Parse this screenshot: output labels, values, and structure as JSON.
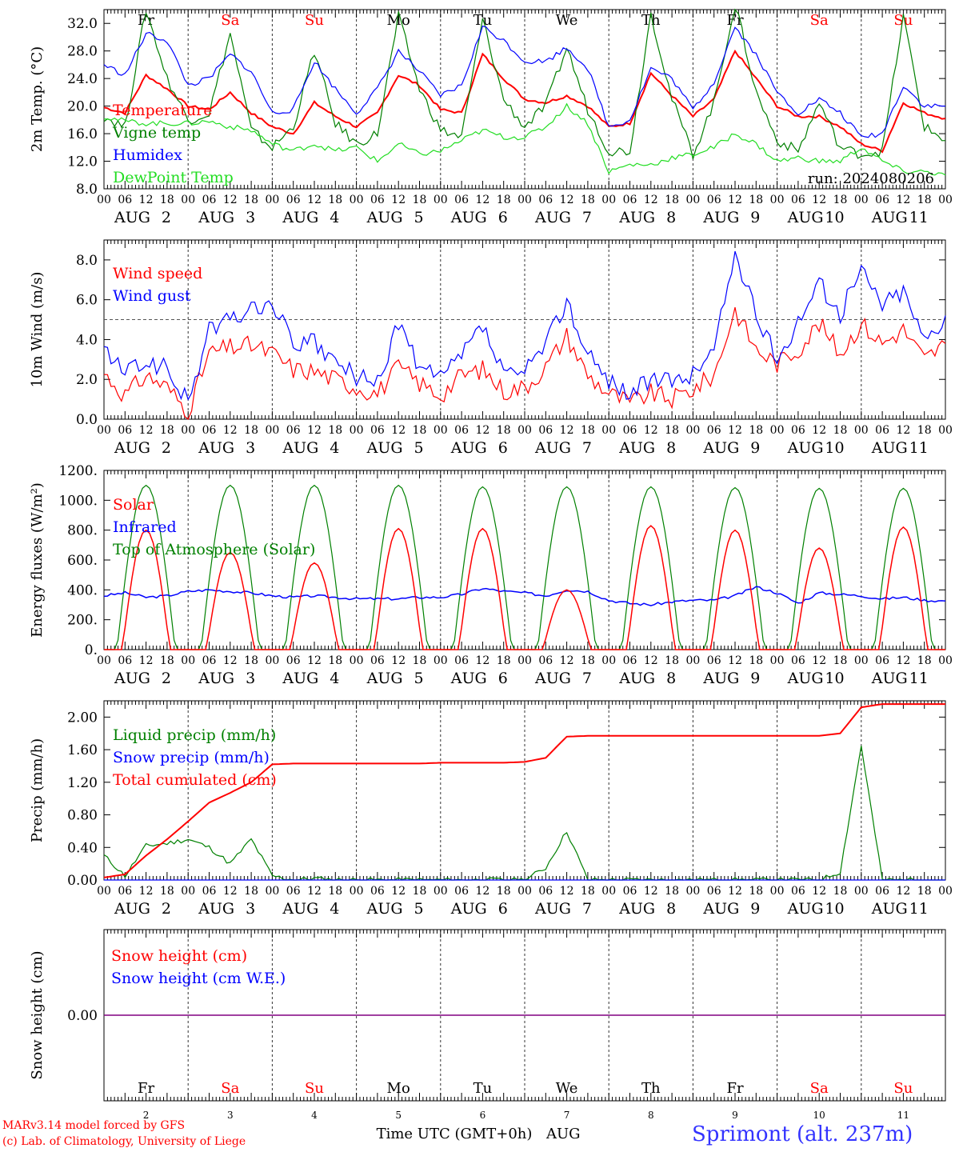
{
  "meteogram": {
    "day_names": [
      "Fr",
      "Sa",
      "Su",
      "Mo",
      "Tu",
      "We",
      "Th",
      "Fr",
      "Sa",
      "Su"
    ],
    "weekend_days": [
      1,
      2,
      8,
      9
    ],
    "day_numbers": [
      "2",
      "3",
      "4",
      "5",
      "6",
      "7",
      "8",
      "9",
      "10",
      "11"
    ],
    "month": "AUG",
    "hour_ticks": [
      "00",
      "06",
      "12",
      "18"
    ],
    "last_tick": "00",
    "run_label": "run: 2024080206",
    "colors": {
      "red": "#ff0000",
      "green": "#008000",
      "blue": "#0000ff",
      "lightgreen": "#22dd22",
      "purple": "#800080",
      "weekend": "#ff0000",
      "weekday": "#000000"
    }
  },
  "chart_data": [
    {
      "type": "line",
      "ylabel": "2m Temp. (°C)",
      "ylim": [
        8,
        34
      ],
      "yticks": [
        "8.0",
        "12.0",
        "16.0",
        "20.0",
        "24.0",
        "28.0",
        "32.0"
      ],
      "x": [
        "Aug 2 00",
        "Aug 2 06",
        "Aug 2 12",
        "Aug 2 18",
        "Aug 3 00",
        "Aug 3 06",
        "Aug 3 12",
        "Aug 3 18",
        "Aug 4 00",
        "Aug 4 06",
        "Aug 4 12",
        "Aug 4 18",
        "Aug 5 00",
        "Aug 5 06",
        "Aug 5 12",
        "Aug 5 18",
        "Aug 6 00",
        "Aug 6 06",
        "Aug 6 12",
        "Aug 6 18",
        "Aug 7 00",
        "Aug 7 06",
        "Aug 7 12",
        "Aug 7 18",
        "Aug 8 00",
        "Aug 8 06",
        "Aug 8 12",
        "Aug 8 18",
        "Aug 9 00",
        "Aug 9 06",
        "Aug 9 12",
        "Aug 9 18",
        "Aug 10 00",
        "Aug 10 06",
        "Aug 10 12",
        "Aug 10 18",
        "Aug 11 00",
        "Aug 11 06",
        "Aug 11 12",
        "Aug 11 18",
        "Aug 12 00"
      ],
      "series": [
        {
          "name": "Temperature",
          "color": "#ff0000",
          "values": [
            19.8,
            19.0,
            24.5,
            22.5,
            20.0,
            19.5,
            22.0,
            19.0,
            17.0,
            16.0,
            20.5,
            18.5,
            17.0,
            19.0,
            24.5,
            23.0,
            19.5,
            19.0,
            27.5,
            24.0,
            21.0,
            20.5,
            21.5,
            20.0,
            17.0,
            17.5,
            24.8,
            21.5,
            18.5,
            21.0,
            28.0,
            24.0,
            20.0,
            18.5,
            18.5,
            17.0,
            14.5,
            13.5,
            20.5,
            19.0,
            18.2
          ]
        },
        {
          "name": "Vigne temp",
          "color": "#008000",
          "values": [
            18.5,
            17.0,
            34.0,
            24.0,
            18.0,
            19.0,
            30.5,
            16.5,
            14.0,
            17.0,
            28.0,
            17.5,
            14.5,
            16.0,
            33.0,
            22.5,
            16.5,
            15.5,
            32.5,
            21.0,
            17.0,
            20.0,
            28.5,
            19.5,
            13.5,
            13.5,
            33.5,
            21.0,
            13.0,
            20.5,
            35.0,
            22.0,
            15.0,
            13.5,
            20.5,
            14.0,
            13.0,
            13.5,
            33.0,
            17.0,
            15.0
          ]
        },
        {
          "name": "Humidex",
          "color": "#0000ff",
          "values": [
            26.0,
            24.5,
            30.5,
            29.5,
            23.0,
            24.0,
            27.5,
            25.0,
            19.0,
            19.5,
            26.5,
            22.5,
            19.0,
            22.5,
            28.0,
            25.0,
            21.5,
            23.0,
            31.5,
            29.5,
            26.5,
            26.5,
            28.5,
            25.5,
            17.0,
            18.0,
            25.5,
            24.0,
            19.5,
            23.5,
            31.5,
            27.5,
            22.0,
            19.0,
            21.0,
            19.0,
            15.5,
            16.0,
            23.0,
            20.0,
            20.0
          ]
        },
        {
          "name": "DewPoint Temp",
          "color": "#22dd22",
          "values": [
            18.5,
            17.8,
            17.5,
            17.5,
            17.5,
            17.8,
            17.0,
            16.5,
            14.5,
            13.5,
            14.5,
            13.5,
            14.0,
            12.0,
            14.5,
            13.0,
            13.5,
            15.0,
            16.5,
            15.5,
            15.5,
            17.0,
            20.0,
            17.5,
            10.5,
            11.5,
            11.5,
            12.5,
            13.0,
            14.0,
            16.0,
            14.5,
            12.0,
            12.5,
            12.0,
            12.0,
            14.0,
            12.0,
            10.5,
            10.5,
            10.0
          ]
        }
      ]
    },
    {
      "type": "line",
      "ylabel": "10m Wind (m/s)",
      "ylim": [
        0,
        9
      ],
      "yticks": [
        "0.0",
        "2.0",
        "4.0",
        "6.0",
        "8.0"
      ],
      "x": [
        "Aug 2 00",
        "Aug 2 06",
        "Aug 2 12",
        "Aug 2 18",
        "Aug 3 00",
        "Aug 3 06",
        "Aug 3 12",
        "Aug 3 18",
        "Aug 4 00",
        "Aug 4 06",
        "Aug 4 12",
        "Aug 4 18",
        "Aug 5 00",
        "Aug 5 06",
        "Aug 5 12",
        "Aug 5 18",
        "Aug 6 00",
        "Aug 6 06",
        "Aug 6 12",
        "Aug 6 18",
        "Aug 7 00",
        "Aug 7 06",
        "Aug 7 12",
        "Aug 7 18",
        "Aug 8 00",
        "Aug 8 06",
        "Aug 8 12",
        "Aug 8 18",
        "Aug 9 00",
        "Aug 9 06",
        "Aug 9 12",
        "Aug 9 18",
        "Aug 10 00",
        "Aug 10 06",
        "Aug 10 12",
        "Aug 10 18",
        "Aug 11 00",
        "Aug 11 06",
        "Aug 11 12",
        "Aug 11 18",
        "Aug 12 00"
      ],
      "reference_line": 5.0,
      "series": [
        {
          "name": "Wind speed",
          "color": "#ff0000",
          "values": [
            2.3,
            1.2,
            2.2,
            1.6,
            0.4,
            3.3,
            3.6,
            3.7,
            3.3,
            2.5,
            2.4,
            2.0,
            1.6,
            1.3,
            2.6,
            1.8,
            1.2,
            2.2,
            2.5,
            1.4,
            1.6,
            2.6,
            4.2,
            2.2,
            1.3,
            0.8,
            1.3,
            1.0,
            1.5,
            2.2,
            5.5,
            3.5,
            2.8,
            3.5,
            4.8,
            3.3,
            4.8,
            3.8,
            4.5,
            3.0,
            3.8
          ]
        },
        {
          "name": "Wind gust",
          "color": "#0000ff",
          "values": [
            3.5,
            2.3,
            2.9,
            2.5,
            0.8,
            4.5,
            5.0,
            5.5,
            5.8,
            3.8,
            3.8,
            2.8,
            2.2,
            1.7,
            4.9,
            2.5,
            2.0,
            3.2,
            4.7,
            2.2,
            2.3,
            3.8,
            6.0,
            3.2,
            2.0,
            1.3,
            2.0,
            1.8,
            2.3,
            3.5,
            8.4,
            5.2,
            3.0,
            5.0,
            6.8,
            5.3,
            7.5,
            5.8,
            6.5,
            4.0,
            5.2
          ]
        }
      ]
    },
    {
      "type": "line",
      "ylabel": "Energy fluxes (W/m²)",
      "ylim": [
        0,
        1200
      ],
      "yticks": [
        "0.",
        "200.",
        "400.",
        "600.",
        "800.",
        "1000.",
        "1200."
      ],
      "series": [
        {
          "name": "Solar",
          "color": "#ff0000",
          "peaks": [
            800,
            650,
            580,
            810,
            810,
            400,
            830,
            800,
            680,
            820
          ]
        },
        {
          "name": "Infrared",
          "color": "#0000ff",
          "values": [
            360,
            380,
            350,
            360,
            390,
            400,
            390,
            380,
            360,
            350,
            360,
            350,
            340,
            340,
            340,
            350,
            350,
            370,
            410,
            390,
            380,
            360,
            400,
            390,
            330,
            310,
            300,
            320,
            330,
            330,
            360,
            420,
            380,
            310,
            380,
            370,
            360,
            340,
            350,
            330,
            325
          ]
        },
        {
          "name": "Top of Atmosphere (Solar)",
          "color": "#008000",
          "peaks": [
            1100,
            1100,
            1100,
            1100,
            1090,
            1090,
            1090,
            1085,
            1080,
            1080
          ]
        }
      ]
    },
    {
      "type": "line",
      "ylabel": "Precip (mm/h)",
      "ylim": [
        0,
        2.2
      ],
      "yticks": [
        "0.00",
        "0.40",
        "0.80",
        "1.20",
        "1.60",
        "2.00"
      ],
      "x": [
        "Aug 2 00",
        "Aug 2 06",
        "Aug 2 12",
        "Aug 2 18",
        "Aug 3 00",
        "Aug 3 06",
        "Aug 3 12",
        "Aug 3 18",
        "Aug 4 00",
        "Aug 4 06",
        "Aug 4 12",
        "Aug 4 18",
        "Aug 5 00",
        "Aug 5 06",
        "Aug 5 12",
        "Aug 5 18",
        "Aug 6 00",
        "Aug 6 06",
        "Aug 6 12",
        "Aug 6 18",
        "Aug 7 00",
        "Aug 7 06",
        "Aug 7 12",
        "Aug 7 18",
        "Aug 8 00",
        "Aug 8 06",
        "Aug 8 12",
        "Aug 8 18",
        "Aug 9 00",
        "Aug 9 06",
        "Aug 9 12",
        "Aug 9 18",
        "Aug 10 00",
        "Aug 10 06",
        "Aug 10 12",
        "Aug 10 18",
        "Aug 11 00",
        "Aug 11 06",
        "Aug 11 12",
        "Aug 11 18",
        "Aug 12 00"
      ],
      "series": [
        {
          "name": "Liquid precip (mm/h)",
          "color": "#008000",
          "values": [
            0.3,
            0.05,
            0.42,
            0.45,
            0.5,
            0.4,
            0.2,
            0.5,
            0.05,
            0.0,
            0.02,
            0.0,
            0.0,
            0.0,
            0.0,
            0.0,
            0.0,
            0.0,
            0.0,
            0.0,
            0.0,
            0.15,
            0.6,
            0.0,
            0.0,
            0.0,
            0.0,
            0.0,
            0.0,
            0.0,
            0.0,
            0.0,
            0.0,
            0.0,
            0.0,
            0.1,
            1.65,
            0.0,
            0.0,
            0.0,
            0.0
          ]
        },
        {
          "name": "Snow precip (mm/h)",
          "color": "#0000ff",
          "values": [
            0,
            0,
            0,
            0,
            0,
            0,
            0,
            0,
            0,
            0,
            0,
            0,
            0,
            0,
            0,
            0,
            0,
            0,
            0,
            0,
            0,
            0,
            0,
            0,
            0,
            0,
            0,
            0,
            0,
            0,
            0,
            0,
            0,
            0,
            0,
            0,
            0,
            0,
            0,
            0,
            0
          ]
        },
        {
          "name": "Total cumulated (cm)",
          "color": "#ff0000",
          "values": [
            0.03,
            0.07,
            0.3,
            0.5,
            0.72,
            0.95,
            1.07,
            1.2,
            1.42,
            1.43,
            1.43,
            1.43,
            1.43,
            1.43,
            1.43,
            1.43,
            1.44,
            1.44,
            1.44,
            1.44,
            1.45,
            1.5,
            1.76,
            1.77,
            1.77,
            1.77,
            1.77,
            1.77,
            1.77,
            1.77,
            1.77,
            1.77,
            1.77,
            1.77,
            1.77,
            1.8,
            2.12,
            2.16,
            2.16,
            2.16,
            2.16
          ]
        }
      ]
    },
    {
      "type": "line",
      "ylabel": "Snow height (cm)",
      "yticks": [
        "0.00"
      ],
      "series": [
        {
          "name": "Snow height (cm)",
          "color": "#ff0000",
          "values": [
            0
          ]
        },
        {
          "name": "Snow height (cm W.E.)",
          "color": "#0000ff",
          "values": [
            0
          ]
        }
      ],
      "xlabel": "Time UTC (GMT+0h)",
      "xlabel_month": "AUG"
    }
  ],
  "footer": {
    "credit_line1": "MARv3.14 model forced by GFS",
    "credit_line2": "(c) Lab. of Climatology, University of Liege",
    "station": "Sprimont (alt. 237m)"
  }
}
